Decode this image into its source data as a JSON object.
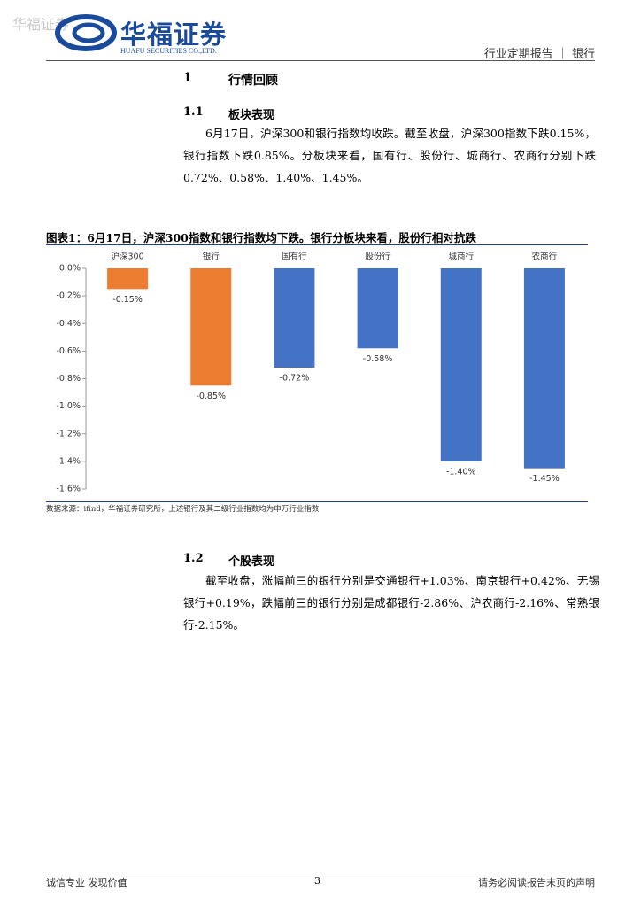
{
  "header": {
    "watermark": "华福证券",
    "logo_name": "华福证券",
    "logo_english": "HUAFU SECURITIES CO.,LTD.",
    "report_type": "行业定期报告 ｜ 银行"
  },
  "sections": [
    {
      "number": "1",
      "title": "行情回顾",
      "subsections": [
        {
          "number": "1.1",
          "title": "板块表现",
          "paragraph": "6月17日，沪深300和银行指数均收跌。截至收盘，沪深300指数下跌0.15%，银行指数下跌0.85%。分板块来看，国有行、股份行、城商行、农商行分别下跌0.72%、0.58%、1.40%、1.45%。"
        },
        {
          "number": "1.2",
          "title": "个股表现",
          "paragraph": "截至收盘，涨幅前三的银行分别是交通银行+1.03%、南京银行+0.42%、无锡银行+0.19%，跌幅前三的银行分别是成都银行-2.86%、沪农商行-2.16%、常熟银行-2.15%。"
        }
      ]
    }
  ],
  "figure_title": "图表1：6月17日，沪深300指数和银行指数均下跌。银行分板块来看，股份行相对抗跌",
  "chart_data": {
    "type": "bar",
    "categories": [
      "沪深300",
      "银行",
      "国有行",
      "股份行",
      "城商行",
      "农商行"
    ],
    "values": [
      -0.15,
      -0.85,
      -0.72,
      -0.58,
      -1.4,
      -1.45
    ],
    "value_labels": [
      "-0.15%",
      "-0.85%",
      "-0.72%",
      "-0.58%",
      "-1.40%",
      "-1.45%"
    ],
    "colors": [
      "#ed7d31",
      "#ed7d31",
      "#4472c4",
      "#4472c4",
      "#4472c4",
      "#4472c4"
    ],
    "ylim": [
      -1.6,
      0
    ],
    "yticks": [
      {
        "value": 0,
        "label": "0.0%"
      },
      {
        "value": -0.2,
        "label": "-0.2%"
      },
      {
        "value": -0.4,
        "label": "-0.4%"
      },
      {
        "value": -0.6,
        "label": "-0.6%"
      },
      {
        "value": -0.8,
        "label": "-0.8%"
      },
      {
        "value": -1.0,
        "label": "-1.0%"
      },
      {
        "value": -1.2,
        "label": "-1.2%"
      },
      {
        "value": -1.4,
        "label": "-1.4%"
      },
      {
        "value": -1.6,
        "label": "-1.6%"
      }
    ],
    "grid": false
  },
  "source": "数据来源：ifind，华福证券研究所，上述银行及其二级行业指数均为申万行业指数",
  "footer": {
    "slogan": "诚信专业  发现价值",
    "page": "3",
    "disclaimer": "请务必阅读报告末页的声明"
  }
}
